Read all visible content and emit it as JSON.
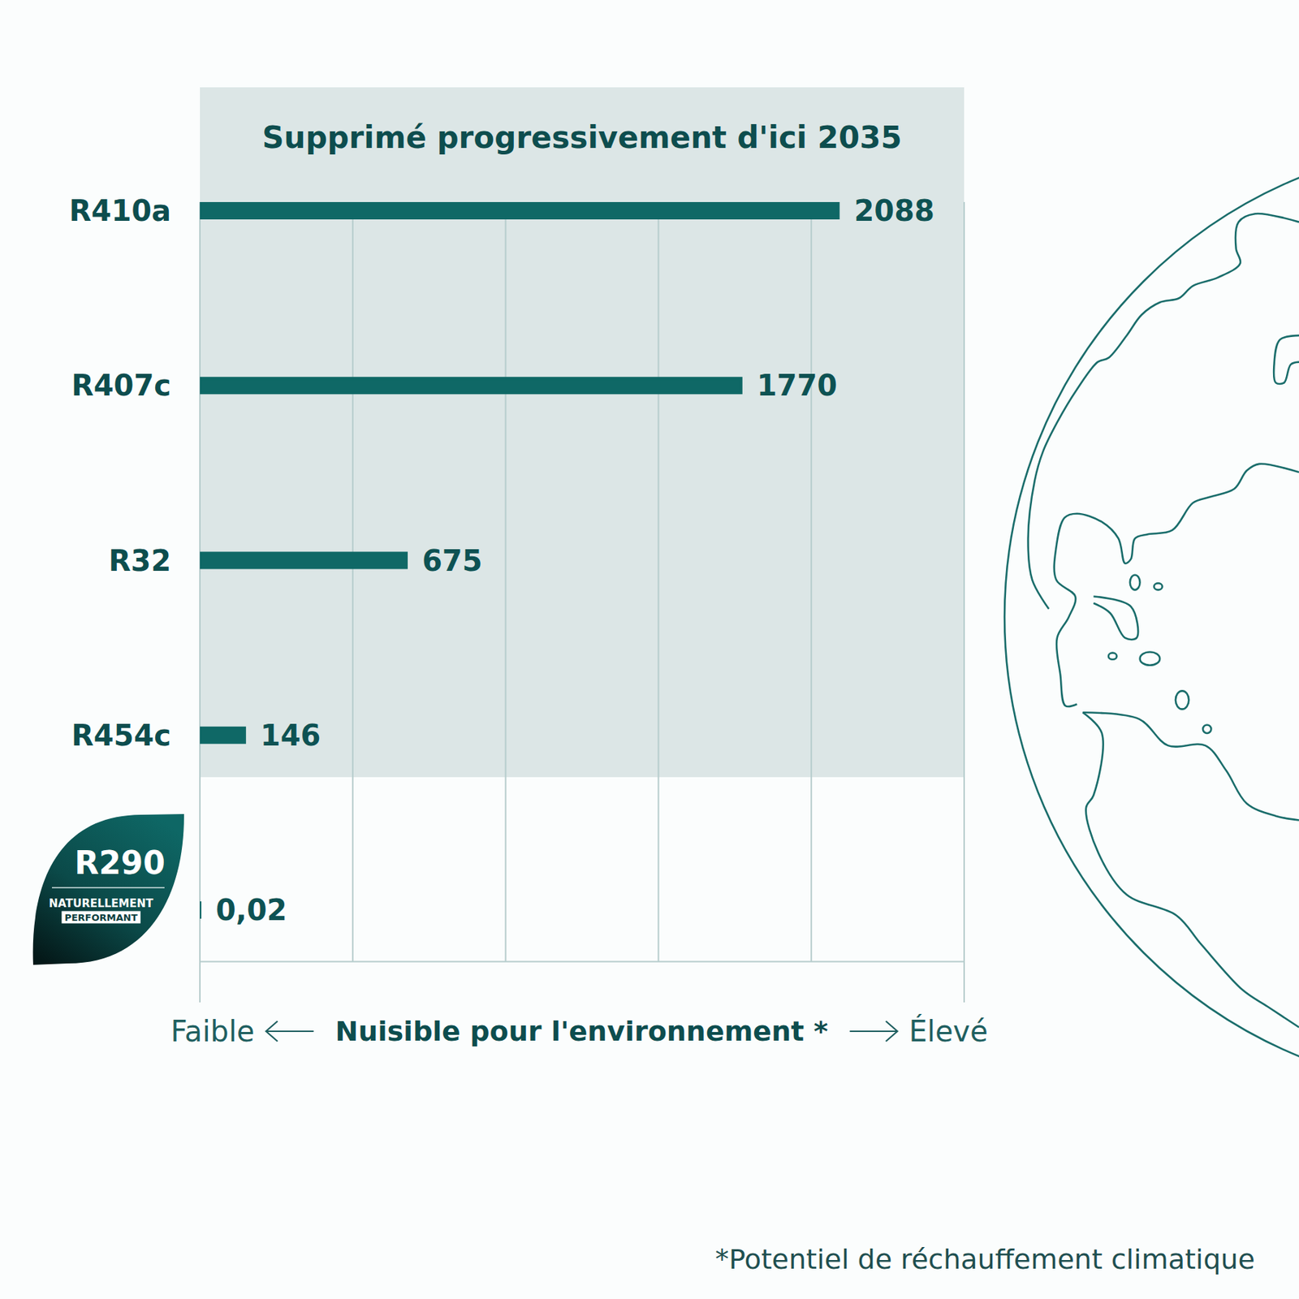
{
  "chart_data": {
    "type": "bar",
    "orientation": "horizontal",
    "title": "Supprimé progressivement d'ici 2035",
    "categories": [
      "R410a",
      "R407c",
      "R32",
      "R454c",
      "R290"
    ],
    "values": [
      2088,
      1770,
      675,
      146,
      0.02
    ],
    "value_labels": [
      "2088",
      "1770",
      "675",
      "146",
      "0,02"
    ],
    "data_labels": true,
    "color": "#0f6866",
    "xlim": [
      0,
      2500
    ],
    "xticks": [
      0,
      500,
      1000,
      1500,
      2000,
      2500
    ],
    "grid": true,
    "tick_labels": "y",
    "xlabel": "Nuisible pour l'environnement *",
    "annotations": [
      "Faible",
      "Élevé",
      "*Potentiel de réchauffement climatique",
      "NATURELLEMENT",
      "PERFORMANT"
    ]
  }
}
